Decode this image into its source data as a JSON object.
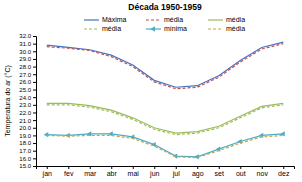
{
  "chart_data": {
    "type": "line",
    "title": "Década 1950-1959",
    "ylabel": "Temperatura do ar (°C)",
    "categories": [
      "jan",
      "fev",
      "mar",
      "abr",
      "mai",
      "jun",
      "jul",
      "ago",
      "set",
      "out",
      "nov",
      "dez"
    ],
    "series": [
      {
        "name": "Máxima",
        "color": "#4472c4",
        "line_style": "solid",
        "values": [
          30.8,
          30.5,
          30.2,
          29.5,
          28.2,
          26.2,
          25.3,
          25.5,
          26.8,
          28.8,
          30.5,
          31.2
        ]
      },
      {
        "name": "média",
        "color": "#C0504D",
        "line_style": "dashed",
        "values": [
          30.6,
          30.4,
          30.1,
          29.3,
          28.0,
          26.0,
          25.1,
          25.3,
          26.6,
          28.6,
          30.3,
          31.0
        ]
      },
      {
        "name": "média",
        "color": "#9BBB59",
        "line_style": "solid",
        "values": [
          23.2,
          23.2,
          22.9,
          22.3,
          21.3,
          20.0,
          19.3,
          19.5,
          20.2,
          21.5,
          22.8,
          23.2
        ]
      },
      {
        "name": "média",
        "color": "#9BBB59",
        "line_style": "dashed",
        "values": [
          23.0,
          23.0,
          22.7,
          22.1,
          21.1,
          19.8,
          19.1,
          19.3,
          20.0,
          21.3,
          22.6,
          23.0
        ]
      },
      {
        "name": "mínima",
        "color": "#4BACC6",
        "line_style": "solid",
        "marker": "triangle-left",
        "values": [
          19.1,
          19.0,
          19.2,
          19.2,
          18.8,
          17.8,
          16.3,
          16.2,
          17.2,
          18.2,
          19.0,
          19.2
        ]
      },
      {
        "name": "média",
        "color": "#C6A44B",
        "line_style": "dashed",
        "values": [
          19.0,
          18.9,
          19.0,
          19.0,
          18.6,
          17.6,
          16.2,
          16.1,
          17.0,
          18.0,
          18.8,
          19.0
        ]
      }
    ],
    "ylim": [
      15.0,
      32.0
    ],
    "yticks": [
      {
        "value": 15.0,
        "label": "15.0"
      },
      {
        "value": 16.0,
        "label": "16.0"
      },
      {
        "value": 17.0,
        "label": "17.0"
      },
      {
        "value": 18.0,
        "label": "18.0"
      },
      {
        "value": 19.0,
        "label": "19.0"
      },
      {
        "value": 20.0,
        "label": "20.0"
      },
      {
        "value": 21.0,
        "label": "21.0"
      },
      {
        "value": 22.0,
        "label": "22.0"
      },
      {
        "value": 23.0,
        "label": "23.0"
      },
      {
        "value": 24.0,
        "label": "24.0"
      },
      {
        "value": 25.0,
        "label": "25.0"
      },
      {
        "value": 26.0,
        "label": "26.0"
      },
      {
        "value": 27.0,
        "label": "27.0"
      },
      {
        "value": 28.0,
        "label": "28.0"
      },
      {
        "value": 29.0,
        "label": "29.0"
      },
      {
        "value": 30.0,
        "label": "30.0"
      },
      {
        "value": 31.0,
        "label": "31.0"
      },
      {
        "value": 32.0,
        "label": "32.0"
      }
    ],
    "grid": false,
    "legend": "top"
  }
}
